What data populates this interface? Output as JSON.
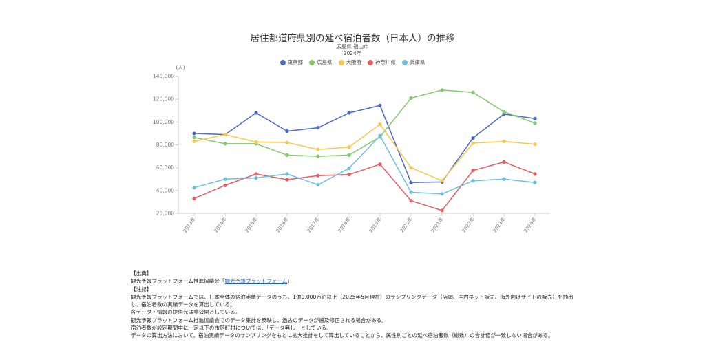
{
  "header": {
    "title": "居住都道府県別の延べ宿泊者数（日本人）の推移",
    "region": "広島県 福山市",
    "year": "2024年"
  },
  "chart_data": {
    "type": "line",
    "title": "居住都道府県別の延べ宿泊者数（日本人）の推移",
    "subtitle": "広島県 福山市 2024年",
    "ylabel": "(人)",
    "xlabel": "",
    "ylim": [
      20000,
      140000
    ],
    "yticks": [
      20000,
      40000,
      60000,
      80000,
      100000,
      120000,
      140000
    ],
    "ytick_labels": [
      "20,000",
      "40,000",
      "60,000",
      "80,000",
      "100,000",
      "120,000",
      "140,000"
    ],
    "categories": [
      "2013年",
      "2014年",
      "2015年",
      "2016年",
      "2017年",
      "2018年",
      "2019年",
      "2020年",
      "2021年",
      "2022年",
      "2023年",
      "2024年"
    ],
    "legend_position": "top",
    "grid": false,
    "series": [
      {
        "name": "東京都",
        "color": "#4a69c9",
        "values": [
          90000,
          89000,
          108000,
          92000,
          95000,
          108000,
          114500,
          47000,
          47500,
          86000,
          107000,
          103000
        ]
      },
      {
        "name": "広島県",
        "color": "#83c96c",
        "values": [
          86500,
          81000,
          81000,
          71000,
          70000,
          71000,
          87000,
          121000,
          128000,
          126000,
          109000,
          99000
        ]
      },
      {
        "name": "大阪府",
        "color": "#f7c84c",
        "values": [
          83000,
          89000,
          82500,
          82000,
          76000,
          78000,
          98000,
          60000,
          48500,
          81500,
          83000,
          80500
        ]
      },
      {
        "name": "神奈川県",
        "color": "#e85a5f",
        "values": [
          33000,
          44500,
          54500,
          49500,
          53000,
          54000,
          63000,
          31000,
          22500,
          57500,
          65000,
          54500
        ]
      },
      {
        "name": "兵庫県",
        "color": "#6cbfe0",
        "values": [
          42500,
          50000,
          51000,
          54500,
          45000,
          59500,
          88000,
          38500,
          37000,
          48500,
          50000,
          47000
        ]
      }
    ]
  },
  "notes": {
    "source_heading": "【出典】",
    "source_org": "観光予報プラットフォーム推進協議会「",
    "source_link": "観光予報プラットフォーム",
    "source_close": "」",
    "notes_heading": "【注記】",
    "lines": [
      "観光予報プラットフォームでは、日本全体の宿泊実績データのうち、1億9,000万泊以上（2025年5月現在）のサンプリングデータ（店頭、国内ネット販売、海外向けサイトの販売）を抽出し、宿泊者数の実績データを算出している。",
      "各データ・情報の提供元は非公開としている。",
      "観光予報プラットフォーム推進協議会でのデータ集計を反映し、過去のデータが遡及修正される場合がある。",
      "宿泊者数が設定期間中に一定以下の市区町村については、「データ無し」としている。",
      "データの算出方法において、宿泊実績データのサンプリングをもとに拡大推計をして算出していることから、属性別ごとの延べ宿泊者数（総数）の合計値が一致しない場合がある。"
    ]
  }
}
